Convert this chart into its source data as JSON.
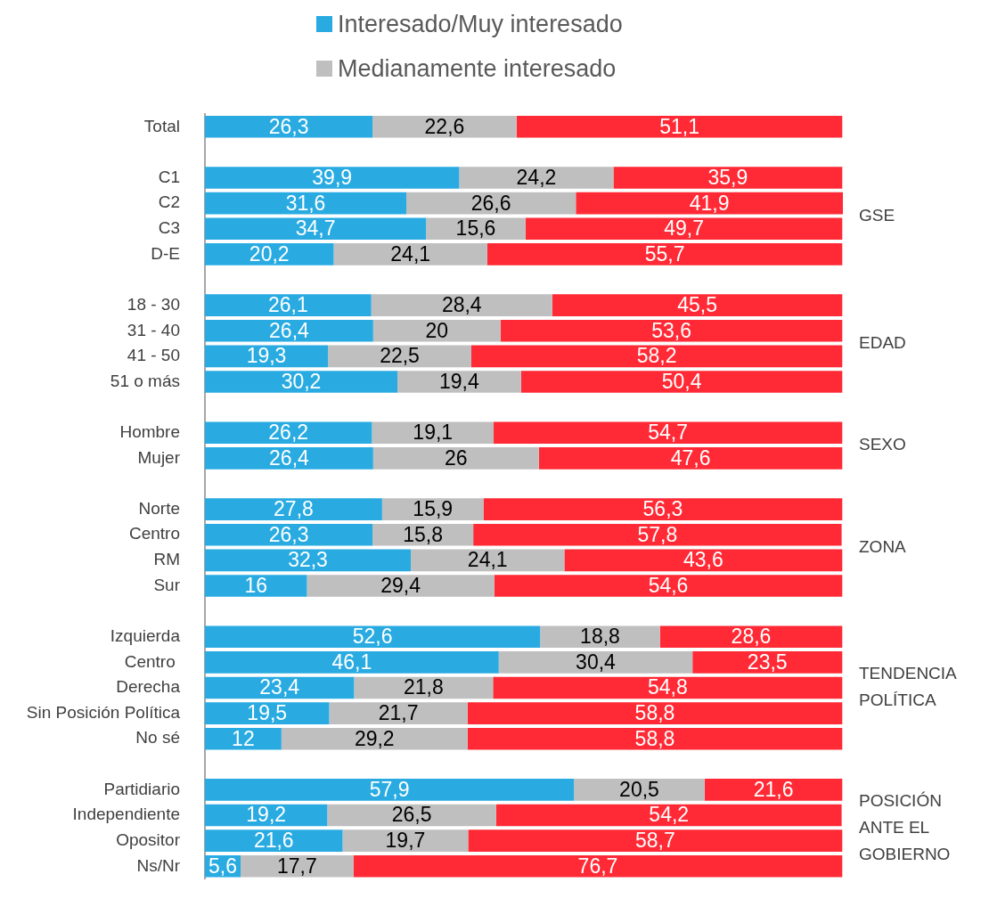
{
  "chart_data": {
    "type": "bar",
    "orientation": "horizontal",
    "stacked": true,
    "legend": "top",
    "categories": [
      "Total",
      null,
      "C1",
      "C2",
      "C3",
      "D-E",
      null,
      "18 - 30",
      "31 - 40",
      "41 - 50",
      "51 o más",
      null,
      "Hombre",
      "Mujer",
      null,
      "Norte",
      "Centro",
      "RM",
      "Sur",
      null,
      "Izquierda",
      "Centro ",
      "Derecha",
      "Sin Posición Política",
      "No sé",
      null,
      "Partidiario",
      "Independiente",
      "Opositor",
      "Ns/Nr"
    ],
    "series": [
      {
        "name": "Interesado/Muy interesado",
        "color": "#29abe2",
        "values": [
          26.3,
          null,
          39.9,
          31.6,
          34.7,
          20.2,
          null,
          26.1,
          26.4,
          19.3,
          30.2,
          null,
          26.2,
          26.4,
          null,
          27.8,
          26.3,
          32.3,
          16,
          null,
          52.6,
          46.1,
          23.4,
          19.5,
          12,
          null,
          57.9,
          19.2,
          21.6,
          5.6
        ],
        "value_labels": [
          "26,3",
          null,
          "39,9",
          "31,6",
          "34,7",
          "20,2",
          null,
          "26,1",
          "26,4",
          "19,3",
          "30,2",
          null,
          "26,2",
          "26,4",
          null,
          "27,8",
          "26,3",
          "32,3",
          "16",
          null,
          "52,6",
          "46,1",
          "23,4",
          "19,5",
          "12",
          null,
          "57,9",
          "19,2",
          "21,6",
          "5,6"
        ]
      },
      {
        "name": "Medianamente interesado",
        "color": "#bfbfbf",
        "values": [
          22.6,
          null,
          24.2,
          26.6,
          15.6,
          24.1,
          null,
          28.4,
          20,
          22.5,
          19.4,
          null,
          19.1,
          26,
          null,
          15.9,
          15.8,
          24.1,
          29.4,
          null,
          18.8,
          30.4,
          21.8,
          21.7,
          29.2,
          null,
          20.5,
          26.5,
          19.7,
          17.7
        ],
        "value_labels": [
          "22,6",
          null,
          "24,2",
          "26,6",
          "15,6",
          "24,1",
          null,
          "28,4",
          "20",
          "22,5",
          "19,4",
          null,
          "19,1",
          "26",
          null,
          "15,9",
          "15,8",
          "24,1",
          "29,4",
          null,
          "18,8",
          "30,4",
          "21,8",
          "21,7",
          "29,2",
          null,
          "20,5",
          "26,5",
          "19,7",
          "17,7"
        ]
      },
      {
        "color": "#ff2a35",
        "values": [
          51.1,
          null,
          35.9,
          41.9,
          49.7,
          55.7,
          null,
          45.5,
          53.6,
          58.2,
          50.4,
          null,
          54.7,
          47.6,
          null,
          56.3,
          57.8,
          43.6,
          54.6,
          null,
          28.6,
          23.5,
          54.8,
          58.8,
          58.8,
          null,
          21.6,
          54.2,
          58.7,
          76.7
        ],
        "value_labels": [
          "51,1",
          null,
          "35,9",
          "41,9",
          "49,7",
          "55,7",
          null,
          "45,5",
          "53,6",
          "58,2",
          "50,4",
          null,
          "54,7",
          "47,6",
          null,
          "56,3",
          "57,8",
          "43,6",
          "54,6",
          null,
          "28,6",
          "23,5",
          "54,8",
          "58,8",
          "58,8",
          null,
          "21,6",
          "54,2",
          "58,7",
          "76,7"
        ]
      }
    ],
    "annotations": [
      "GSE",
      "EDAD",
      "SEXO",
      "ZONA",
      "TENDENCIA POLÍTICA",
      "POSICIÓN ANTE EL GOBIERNO"
    ]
  }
}
